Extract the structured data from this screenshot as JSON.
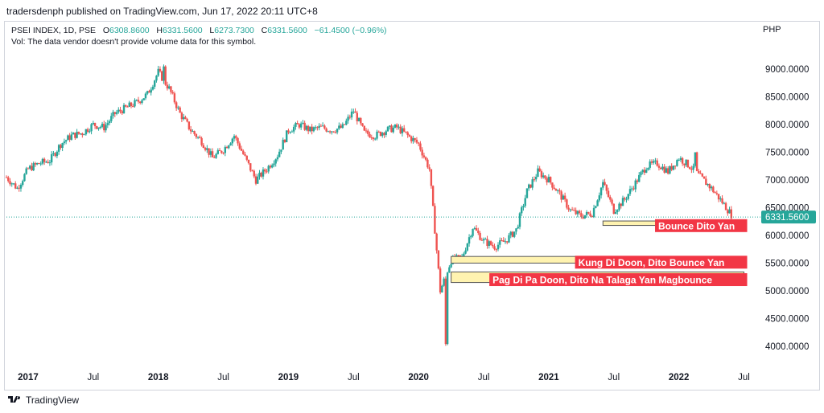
{
  "header": {
    "published": "tradersdenph published on TradingView.com, Jun 17, 2022 20:11 UTC+8"
  },
  "legend": {
    "symbol": "PSEI INDEX, 1D, PSE",
    "open_label": "O",
    "open": "6308.8600",
    "high_label": "H",
    "high": "6331.5600",
    "low_label": "L",
    "low": "6273.7300",
    "close_label": "C",
    "close": "6331.5600",
    "change": "−61.4500 (−0.96%)",
    "vol_note": "Vol: The data vendor doesn't provide volume data for this symbol."
  },
  "currency": "PHP",
  "footer": {
    "brand": "TradingView",
    "logo_icon": "tradingview-logo-icon"
  },
  "colors": {
    "up": "#26a69a",
    "down": "#ef5350",
    "zone_fill": "#fff3b0",
    "zone_stroke": "#555555",
    "label_bg": "#f23645",
    "price_tag": "#26a69a"
  },
  "chart_data": {
    "type": "candlestick",
    "y_axis": {
      "ticks": [
        4000,
        4500,
        5000,
        5500,
        6000,
        6500,
        7000,
        7500,
        8000,
        8500,
        9000
      ],
      "tick_labels": [
        "4000.0000",
        "4500.0000",
        "5000.0000",
        "5500.0000",
        "6000.0000",
        "6500.0000",
        "7000.0000",
        "7500.0000",
        "8000.0000",
        "8500.0000",
        "9000.0000"
      ],
      "range": [
        3650,
        9350
      ]
    },
    "x_axis": {
      "labels": [
        "2017",
        "Jul",
        "2018",
        "Jul",
        "2019",
        "Jul",
        "2020",
        "Jul",
        "2021",
        "Jul",
        "2022",
        "Jul"
      ],
      "label_dates": [
        "2017-01",
        "2017-07",
        "2018-01",
        "2018-07",
        "2019-01",
        "2019-07",
        "2020-01",
        "2020-07",
        "2021-01",
        "2021-07",
        "2022-01",
        "2022-07"
      ],
      "range": [
        "2016-11",
        "2022-08"
      ]
    },
    "last_price": {
      "value": 6331.56,
      "label": "6331.5600"
    },
    "price_path": [
      [
        "2016-11",
        7050
      ],
      [
        "2016-12",
        6850
      ],
      [
        "2017-01",
        7200
      ],
      [
        "2017-02",
        7300
      ],
      [
        "2017-03",
        7350
      ],
      [
        "2017-04",
        7650
      ],
      [
        "2017-05",
        7800
      ],
      [
        "2017-06",
        7850
      ],
      [
        "2017-07",
        8000
      ],
      [
        "2017-08",
        7950
      ],
      [
        "2017-09",
        8200
      ],
      [
        "2017-10",
        8300
      ],
      [
        "2017-11",
        8400
      ],
      [
        "2017-12",
        8550
      ],
      [
        "2018-01",
        8950
      ],
      [
        "2018-02",
        8650
      ],
      [
        "2018-03",
        8200
      ],
      [
        "2018-04",
        7900
      ],
      [
        "2018-05",
        7700
      ],
      [
        "2018-06",
        7400
      ],
      [
        "2018-07",
        7550
      ],
      [
        "2018-08",
        7800
      ],
      [
        "2018-09",
        7400
      ],
      [
        "2018-10",
        7000
      ],
      [
        "2018-11",
        7200
      ],
      [
        "2018-12",
        7450
      ],
      [
        "2019-01",
        7900
      ],
      [
        "2019-02",
        8000
      ],
      [
        "2019-03",
        7900
      ],
      [
        "2019-04",
        7950
      ],
      [
        "2019-05",
        7900
      ],
      [
        "2019-06",
        7950
      ],
      [
        "2019-07",
        8250
      ],
      [
        "2019-08",
        7850
      ],
      [
        "2019-09",
        7800
      ],
      [
        "2019-10",
        7900
      ],
      [
        "2019-11",
        7950
      ],
      [
        "2019-12",
        7800
      ],
      [
        "2020-01",
        7650
      ],
      [
        "2020-02",
        7200
      ],
      [
        "2020-03",
        5000
      ],
      [
        "2020-04",
        5550
      ],
      [
        "2020-05",
        5600
      ],
      [
        "2020-06",
        6150
      ],
      [
        "2020-07",
        5900
      ],
      [
        "2020-08",
        5800
      ],
      [
        "2020-09",
        5900
      ],
      [
        "2020-10",
        6100
      ],
      [
        "2020-11",
        6800
      ],
      [
        "2020-12",
        7150
      ],
      [
        "2021-01",
        7000
      ],
      [
        "2021-02",
        6750
      ],
      [
        "2021-03",
        6450
      ],
      [
        "2021-04",
        6350
      ],
      [
        "2021-05",
        6400
      ],
      [
        "2021-06",
        6950
      ],
      [
        "2021-07",
        6450
      ],
      [
        "2021-08",
        6650
      ],
      [
        "2021-09",
        6950
      ],
      [
        "2021-10",
        7250
      ],
      [
        "2021-11",
        7300
      ],
      [
        "2021-12",
        7150
      ],
      [
        "2022-01",
        7400
      ],
      [
        "2022-02",
        7250
      ],
      [
        "2022-03",
        7050
      ],
      [
        "2022-04",
        6850
      ],
      [
        "2022-05",
        6600
      ],
      [
        "2022-06",
        6330
      ]
    ],
    "extremes": [
      {
        "date": "2018-01",
        "value": 9050
      },
      {
        "date": "2020-03",
        "value": 4040
      },
      {
        "date": "2022-02",
        "value": 7500
      }
    ],
    "zones": [
      {
        "label": "Bounce Dito Yan",
        "low": 6180,
        "high": 6260,
        "start": "2021-06",
        "end": "2022-07"
      },
      {
        "label": "Kung Di Doon, Dito Bounce Yan",
        "low": 5500,
        "high": 5620,
        "start": "2020-04",
        "end": "2022-07"
      },
      {
        "label": "Pag Di Pa Doon, Dito Na Talaga Yan Magbounce",
        "low": 5150,
        "high": 5340,
        "start": "2020-04",
        "end": "2022-07"
      }
    ]
  }
}
